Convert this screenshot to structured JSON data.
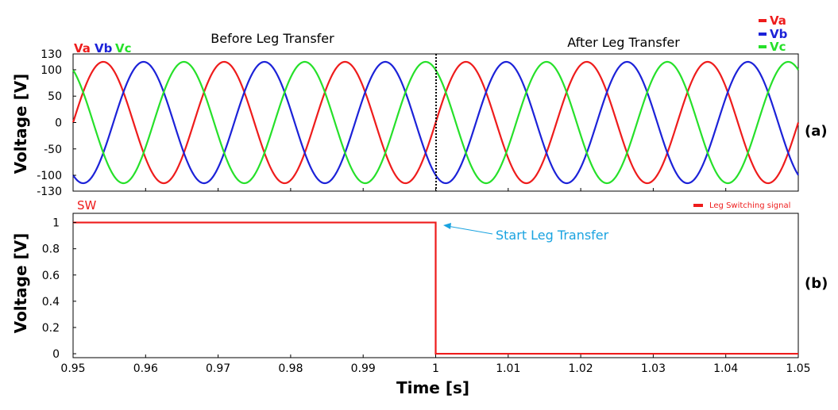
{
  "chart_data": [
    {
      "type": "line",
      "panel_tag": "(a)",
      "ylabel": "Voltage [V]",
      "ylim": [
        -130,
        130
      ],
      "yticks": [
        "130",
        "100",
        "50",
        "0",
        "-50",
        "-100",
        "-130"
      ],
      "yticks_values": [
        130,
        100,
        50,
        0,
        -50,
        -100,
        -130
      ],
      "xlim": [
        0.95,
        1.05
      ],
      "amplitude": 115,
      "frequency_hz": 60,
      "before_label": "Before Leg Transfer",
      "after_label": "After Leg Transfer",
      "transfer_time": 1.0,
      "inline_legend": [
        "Va",
        "Vb",
        "Vc"
      ],
      "legend": [
        "Va",
        "Vb",
        "Vc"
      ],
      "legend_placement": "top-right",
      "series": [
        {
          "name": "Va",
          "color": "#ee1c1c",
          "phase_deg": 0
        },
        {
          "name": "Vb",
          "color": "#1c22d8",
          "phase_deg": -120
        },
        {
          "name": "Vc",
          "color": "#26e02a",
          "phase_deg": 120
        }
      ],
      "grid": false
    },
    {
      "type": "line",
      "panel_tag": "(b)",
      "title": "SW",
      "ylabel": "Voltage [V]",
      "xlabel": "Time [s]",
      "ylim": [
        -0.03,
        1.07
      ],
      "yticks": [
        "1",
        "0.8",
        "0.6",
        "0.4",
        "0.2",
        "0"
      ],
      "yticks_values": [
        1,
        0.8,
        0.6,
        0.4,
        0.2,
        0
      ],
      "xlim": [
        0.95,
        1.05
      ],
      "xticks": [
        "0.95",
        "0.96",
        "0.97",
        "0.98",
        "0.99",
        "1",
        "1.01",
        "1.02",
        "1.03",
        "1.04",
        "1.05"
      ],
      "xticks_values": [
        0.95,
        0.96,
        0.97,
        0.98,
        0.99,
        1.0,
        1.01,
        1.02,
        1.03,
        1.04,
        1.05
      ],
      "legend": [
        "Leg Switching signal"
      ],
      "legend_placement": "top-right",
      "series": [
        {
          "name": "Leg Switching signal",
          "color": "#ee1c1c",
          "x": [
            0.95,
            1.0,
            1.0,
            1.05
          ],
          "y": [
            1,
            1,
            0,
            0
          ]
        }
      ],
      "annotation": {
        "text": "Start Leg Transfer",
        "x": 1.0,
        "y": 1,
        "color": "#1aa3e0"
      },
      "grid": false
    }
  ]
}
